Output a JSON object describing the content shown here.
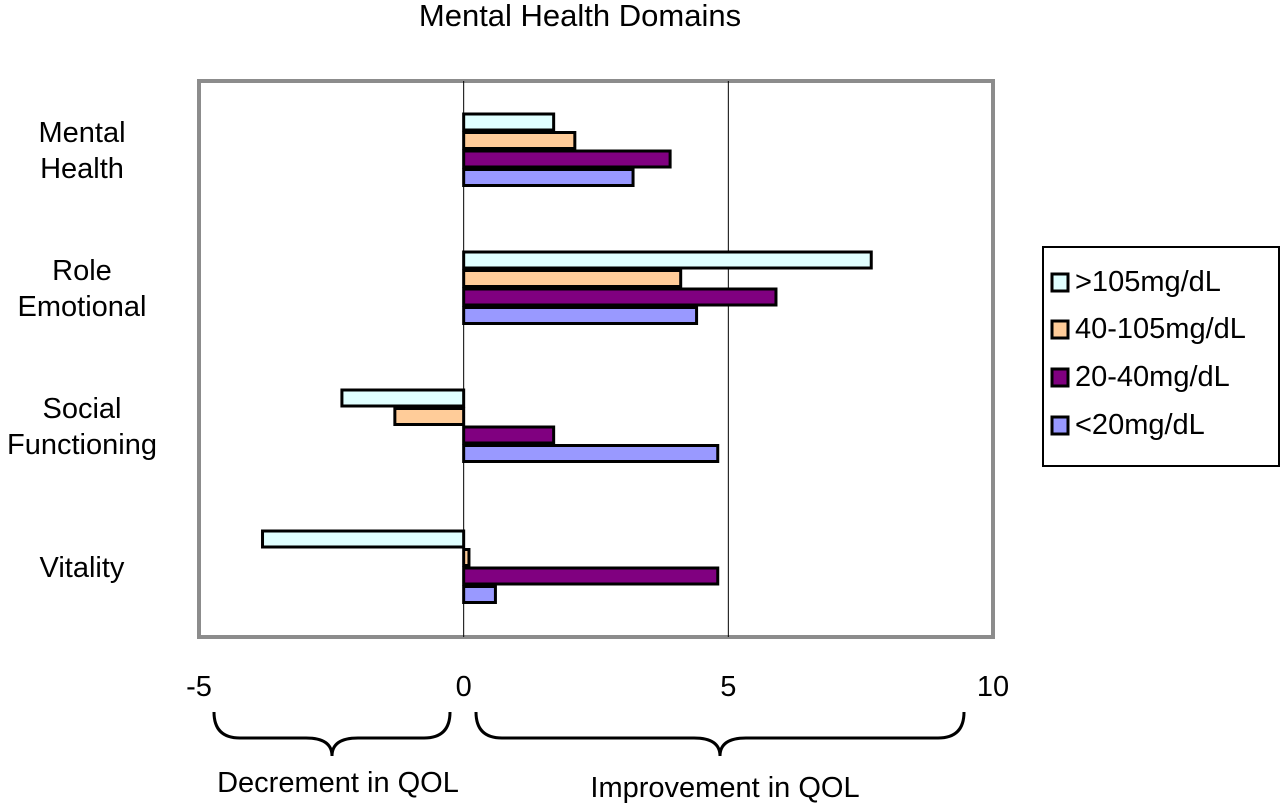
{
  "chart_data": {
    "type": "bar",
    "orientation": "horizontal",
    "title": "Mental Health Domains",
    "categories": [
      [
        "Mental",
        "Health"
      ],
      [
        "Role",
        "Emotional"
      ],
      [
        "Social",
        "Functioning"
      ],
      [
        "Vitality"
      ]
    ],
    "series": [
      {
        "name": ">105mg/dL",
        "color": "#E0FFFF",
        "values": [
          1.7,
          7.7,
          -2.3,
          -3.8
        ]
      },
      {
        "name": "40-105mg/dL",
        "color": "#FFCC99",
        "values": [
          2.1,
          4.1,
          -1.3,
          0.1
        ]
      },
      {
        "name": "20-40mg/dL",
        "color": "#800080",
        "values": [
          3.9,
          5.9,
          1.7,
          4.8
        ]
      },
      {
        "name": "<20mg/dL",
        "color": "#9999FF",
        "values": [
          3.2,
          4.4,
          4.8,
          0.6
        ]
      }
    ],
    "xlim": [
      -5,
      10
    ],
    "xticks": [
      -5,
      0,
      5,
      10
    ],
    "xtick_labels": [
      "-5",
      "0",
      "5",
      "10"
    ],
    "gridlines_x": [
      0,
      5
    ],
    "legend_position": "right",
    "annotations": {
      "decrement": "Decrement in QOL",
      "improvement": "Improvement in QOL"
    }
  }
}
